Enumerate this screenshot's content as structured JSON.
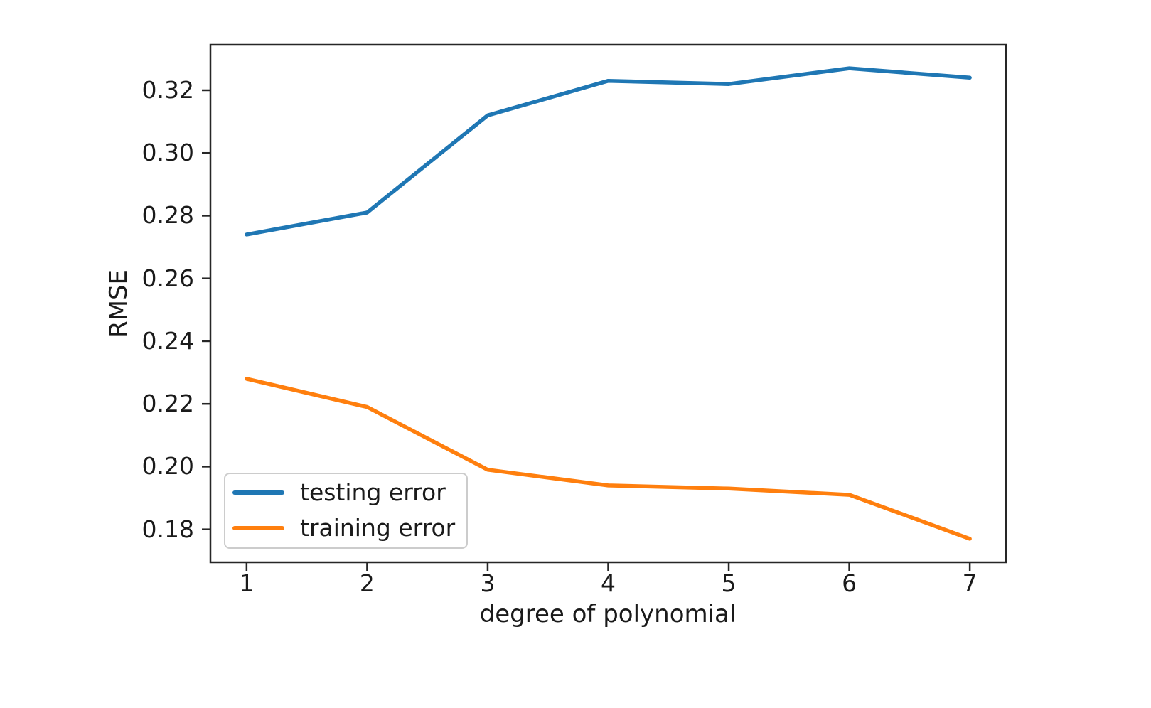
{
  "figure": {
    "background": "#ffffff",
    "spine_color": "#262626",
    "text_color": "#1a1a1a",
    "legend_edge_color": "#cccccc"
  },
  "chart_data": {
    "type": "line",
    "title": "",
    "xlabel": "degree of polynomial",
    "ylabel": "RMSE",
    "x": [
      1,
      2,
      3,
      4,
      5,
      6,
      7
    ],
    "series": [
      {
        "name": "testing error",
        "color": "#1f77b4",
        "values": [
          0.274,
          0.281,
          0.312,
          0.323,
          0.322,
          0.327,
          0.324
        ]
      },
      {
        "name": "training error",
        "color": "#ff7f0e",
        "values": [
          0.228,
          0.219,
          0.199,
          0.194,
          0.193,
          0.191,
          0.177
        ]
      }
    ],
    "xlim": [
      0.7,
      7.3
    ],
    "ylim": [
      0.1695,
      0.3345
    ],
    "x_ticks": [
      1,
      2,
      3,
      4,
      5,
      6,
      7
    ],
    "x_tick_labels": [
      "1",
      "2",
      "3",
      "4",
      "5",
      "6",
      "7"
    ],
    "y_ticks": [
      0.18,
      0.2,
      0.22,
      0.24,
      0.26,
      0.28,
      0.3,
      0.32
    ],
    "y_tick_labels": [
      "0.18",
      "0.20",
      "0.22",
      "0.24",
      "0.26",
      "0.28",
      "0.30",
      "0.32"
    ],
    "grid": false,
    "legend": {
      "position": "lower left",
      "entries": [
        "testing error",
        "training error"
      ]
    }
  }
}
